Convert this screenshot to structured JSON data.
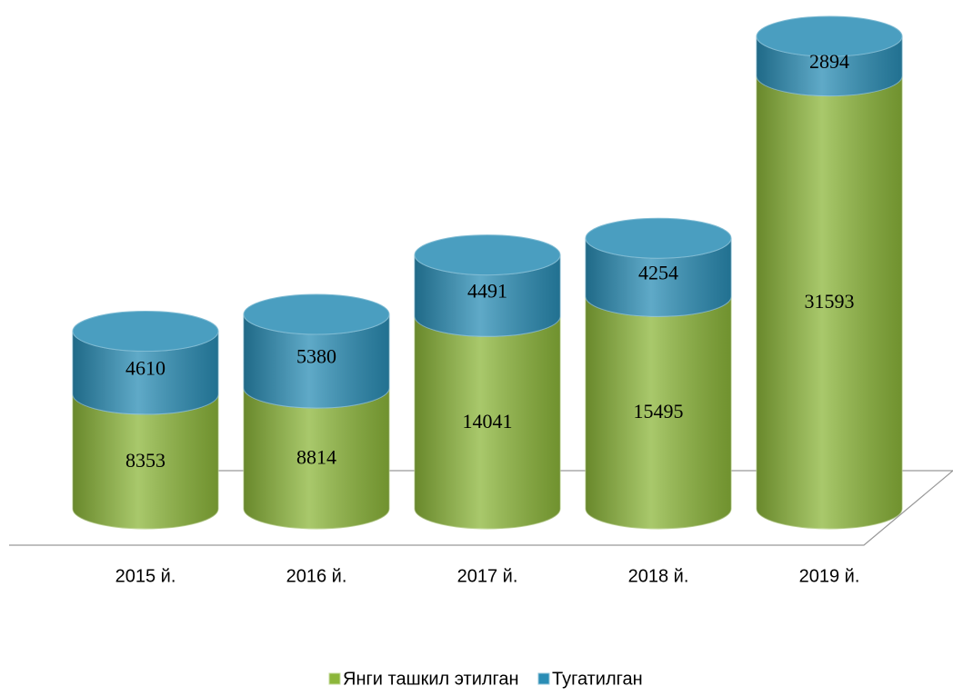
{
  "chart_data": {
    "type": "bar",
    "stacked": true,
    "categories": [
      "2015 й.",
      "2016 й.",
      "2017 й.",
      "2018 й.",
      "2019 й."
    ],
    "series": [
      {
        "name": "Янги ташкил этилган",
        "color": "#8cb63a",
        "values": [
          8353,
          8814,
          14041,
          15495,
          31593
        ]
      },
      {
        "name": "Тугатилган",
        "color": "#2a8db5",
        "values": [
          4610,
          5380,
          4491,
          4254,
          2894
        ]
      }
    ]
  }
}
